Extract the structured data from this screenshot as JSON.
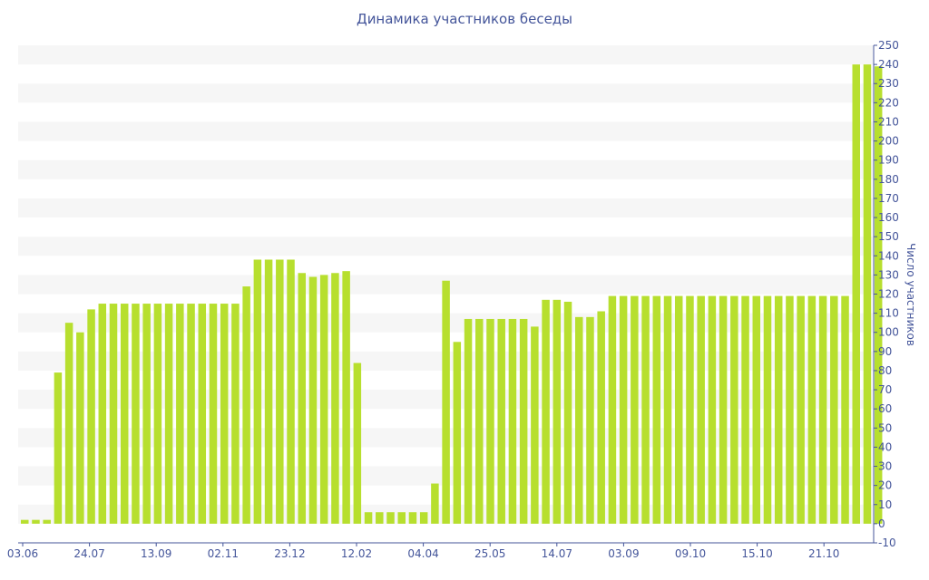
{
  "chart_data": {
    "type": "bar",
    "title": "Динамика участников беседы",
    "ylabel": "Число участников",
    "xlabel": "",
    "ylim": [
      -10,
      250
    ],
    "y_tick_step": 10,
    "y_axis_side": "right",
    "grid": "horizontal alternating bands",
    "x_tick_labels": [
      "03.06",
      "24.07",
      "13.09",
      "02.11",
      "23.12",
      "12.02",
      "04.04",
      "25.05",
      "14.07",
      "03.09",
      "09.10",
      "15.10",
      "21.10"
    ],
    "values": [
      2,
      2,
      2,
      79,
      105,
      100,
      112,
      115,
      115,
      115,
      115,
      115,
      115,
      115,
      115,
      115,
      115,
      115,
      115,
      115,
      124,
      138,
      138,
      138,
      138,
      131,
      129,
      130,
      131,
      132,
      84,
      6,
      6,
      6,
      6,
      6,
      6,
      21,
      127,
      95,
      107,
      107,
      107,
      107,
      107,
      107,
      103,
      117,
      117,
      116,
      108,
      108,
      111,
      119,
      119,
      119,
      119,
      119,
      119,
      119,
      119,
      119,
      119,
      119,
      119,
      119,
      119,
      119,
      119,
      119,
      119,
      119,
      119,
      119,
      119,
      240,
      240,
      239
    ],
    "colors": {
      "bar": "#b7df2e",
      "band": "#f6f6f6",
      "text": "#44559a",
      "axis": "#44559a"
    }
  }
}
